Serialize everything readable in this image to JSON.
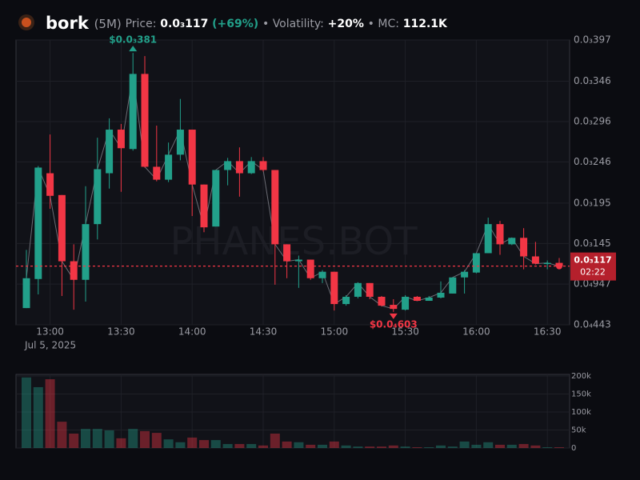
{
  "chart_data": {
    "type": "candlestick",
    "header": {
      "name": "bork",
      "interval": "(5M)",
      "price_label": "Price:",
      "price": "0.0₃117",
      "change": "(+69%)",
      "volatility_label": "• Volatility:",
      "volatility": "+20%",
      "mc_label": "• MC:",
      "mc": "112.1K"
    },
    "watermark": "PHANES.BOT",
    "date_label": "Jul 5, 2025",
    "up_color": "#22a08a",
    "down_color": "#f23645",
    "categories": [
      null,
      null,
      "13:00",
      null,
      null,
      null,
      null,
      null,
      "13:30",
      null,
      null,
      null,
      null,
      null,
      "14:00",
      null,
      null,
      null,
      null,
      null,
      "14:30",
      null,
      null,
      null,
      null,
      null,
      "15:00",
      null,
      null,
      null,
      null,
      null,
      "15:30",
      null,
      null,
      null,
      null,
      null,
      "16:00",
      null,
      null,
      null,
      null,
      null,
      "16:30",
      null
    ],
    "open": [
      6.5e-05,
      0.000101,
      0.000232,
      0.000205,
      0.000123,
      0.0001,
      0.000169,
      0.000232,
      0.000286,
      0.000262,
      0.000355,
      0.00024,
      0.000224,
      0.000255,
      0.000286,
      0.000218,
      0.000166,
      0.000236,
      0.000247,
      0.000232,
      0.000247,
      0.000236,
      0.000144,
      0.000123,
      0.000125,
      0.000102,
      0.00011,
      7e-05,
      7.9e-05,
      9.6e-05,
      7.9e-05,
      6.9e-05,
      6.3e-05,
      7.9e-05,
      7.4e-05,
      7.8e-05,
      8.3e-05,
      0.000103,
      0.000109,
      0.000133,
      0.000169,
      0.000144,
      0.000152,
      0.000129,
      0.00012,
      0.000121
    ],
    "high": [
      0.000137,
      0.000241,
      0.00028,
      0.000205,
      0.000144,
      0.000216,
      0.000276,
      0.0003,
      0.000293,
      0.000381,
      0.000377,
      0.000291,
      0.00027,
      0.000324,
      0.000286,
      0.000218,
      0.000236,
      0.000251,
      0.000264,
      0.000252,
      0.000252,
      0.000236,
      0.000144,
      0.00013,
      0.000125,
      0.000112,
      0.00011,
      8.1e-05,
      9.7e-05,
      9.6e-05,
      8e-05,
      7.6e-05,
      8.1e-05,
      8e-05,
      8e-05,
      9.8e-05,
      0.000103,
      0.000112,
      0.000133,
      0.000177,
      0.000173,
      0.000152,
      0.000164,
      0.000147,
      0.000124,
      0.000127
    ],
    "low": [
      6.5e-05,
      8.2e-05,
      0.000188,
      8e-05,
      6.3e-05,
      7.3e-05,
      0.00015,
      0.000213,
      0.000209,
      0.00026,
      0.000239,
      0.000222,
      0.000221,
      0.000248,
      0.000179,
      0.000159,
      0.000166,
      0.000217,
      0.000203,
      0.000231,
      0.000234,
      9.4e-05,
      0.000102,
      9e-05,
      0.0001,
      9.6e-05,
      6.2e-05,
      6.8e-05,
      7.7e-05,
      7.6e-05,
      6.7e-05,
      6.03e-05,
      6.2e-05,
      7.4e-05,
      7.4e-05,
      7.7e-05,
      8.3e-05,
      8.3e-05,
      0.000108,
      0.000133,
      0.000131,
      0.000143,
      0.000113,
      0.000119,
      0.000113,
      0.000116
    ],
    "close": [
      0.000102,
      0.000239,
      0.000204,
      0.000123,
      0.0001,
      0.000169,
      0.000237,
      0.000286,
      0.000263,
      0.000355,
      0.00024,
      0.000224,
      0.000255,
      0.000286,
      0.000218,
      0.000165,
      0.000236,
      0.000247,
      0.000232,
      0.000247,
      0.000236,
      0.000144,
      0.000123,
      0.000125,
      0.000102,
      0.00011,
      7e-05,
      7.9e-05,
      9.6e-05,
      7.9e-05,
      6.8e-05,
      6.4e-05,
      7.9e-05,
      7.4e-05,
      7.8e-05,
      8.4e-05,
      0.000103,
      0.00011,
      0.000133,
      0.000169,
      0.000144,
      0.000152,
      0.000129,
      0.00012,
      0.000121,
      0.000117
    ],
    "volume": [
      196000,
      169000,
      191000,
      73000,
      40000,
      53000,
      53000,
      49000,
      27000,
      53000,
      47000,
      42000,
      24000,
      16000,
      29000,
      22000,
      22000,
      11000,
      11000,
      11000,
      7000,
      40000,
      18000,
      16000,
      9000,
      9000,
      18000,
      7000,
      4000,
      4000,
      4000,
      7000,
      4000,
      2000,
      2000,
      7000,
      4000,
      18000,
      9000,
      16000,
      9000,
      9000,
      11000,
      7000,
      2000,
      2000
    ],
    "ylim": [
      4.43e-05,
      0.000397
    ],
    "yticks": [
      {
        "value": 0.000397,
        "label": "0.0₃397"
      },
      {
        "value": 0.000346,
        "label": "0.0₃346"
      },
      {
        "value": 0.000296,
        "label": "0.0₃296"
      },
      {
        "value": 0.000246,
        "label": "0.0₃246"
      },
      {
        "value": 0.000195,
        "label": "0.0₃195"
      },
      {
        "value": 0.000145,
        "label": "0.0₃145"
      },
      {
        "value": 9.47e-05,
        "label": "0.0₄947"
      },
      {
        "value": 4.43e-05,
        "label": "0.0₄443"
      }
    ],
    "volume_ylim": [
      0,
      200000
    ],
    "volume_yticks": [
      {
        "value": 200000,
        "label": "200k"
      },
      {
        "value": 150000,
        "label": "150k"
      },
      {
        "value": 100000,
        "label": "100k"
      },
      {
        "value": 50000,
        "label": "50k"
      },
      0
    ],
    "high_marker": {
      "value": 0.000381,
      "label": "$0.0₃381"
    },
    "low_marker": {
      "value": 6.03e-05,
      "label": "$0.0₄603"
    },
    "price_line": {
      "value": 0.000117,
      "label": "0.0₃117",
      "countdown": "02:22"
    },
    "grid": true
  }
}
